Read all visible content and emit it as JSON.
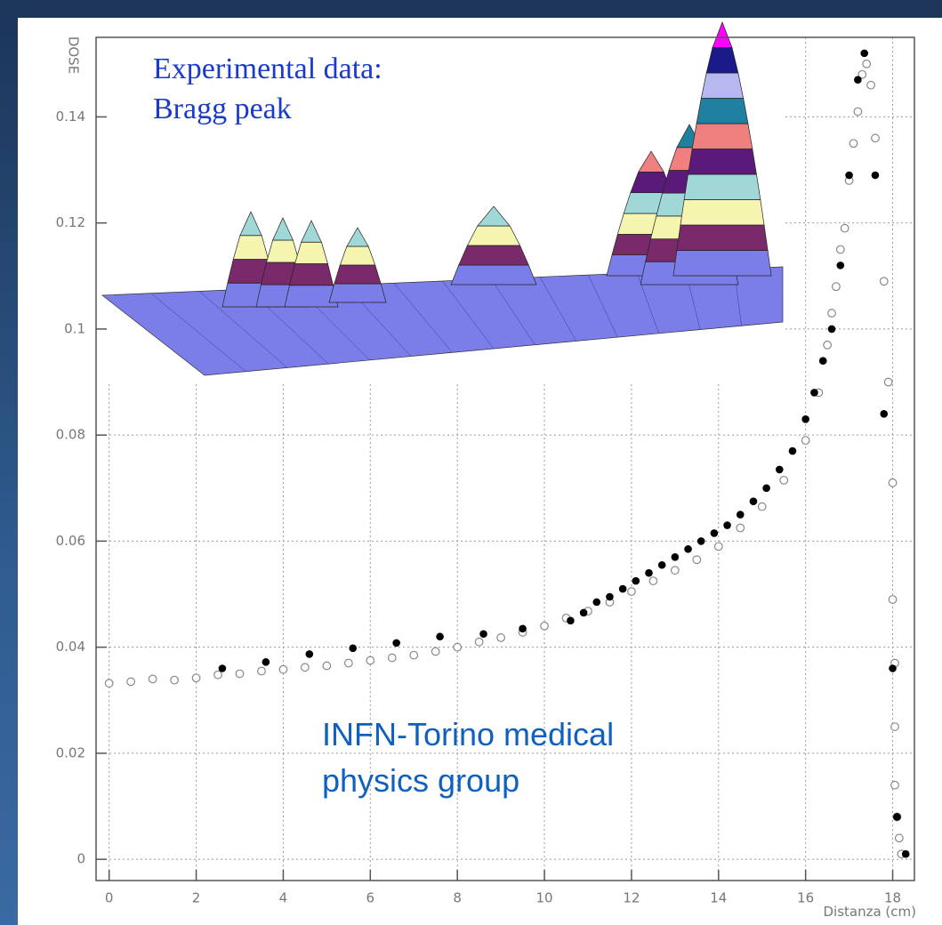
{
  "chart_data": {
    "type": "scatter",
    "y_label": "DOSE",
    "x_label": "Distanza (cm)",
    "annotations": [
      "Experimental data:",
      "Bragg peak",
      "INFN-Torino medical",
      "physics group"
    ],
    "xlim": [
      -0.3,
      18.5
    ],
    "ylim": [
      -0.004,
      0.155
    ],
    "xticks": [
      0,
      2,
      4,
      6,
      8,
      10,
      12,
      14,
      16,
      18
    ],
    "yticks": [
      0,
      0.02,
      0.04,
      0.06,
      0.08,
      0.1,
      0.12,
      0.14
    ],
    "grid": true,
    "series": [
      {
        "color": "#888888",
        "marker": "open",
        "x": [
          0,
          0.5,
          1,
          1.5,
          2,
          2.5,
          3,
          3.5,
          4,
          4.5,
          5,
          5.5,
          6,
          6.5,
          7,
          7.5,
          8,
          8.5,
          9,
          9.5,
          10,
          10.5,
          11,
          11.5,
          12,
          12.5,
          13,
          13.5,
          14,
          14.5,
          15,
          15.5,
          16,
          16.3,
          16.5,
          16.6,
          16.7,
          16.8,
          16.9,
          17,
          17.1,
          17.2,
          17.3,
          17.4,
          17.5,
          17.6,
          17.8,
          17.9,
          18,
          18,
          18.05,
          18.05,
          18.05,
          18.1,
          18.15,
          18.2
        ],
        "values": [
          0.0332,
          0.0335,
          0.034,
          0.0338,
          0.0342,
          0.0348,
          0.035,
          0.0355,
          0.0358,
          0.0362,
          0.0365,
          0.037,
          0.0375,
          0.038,
          0.0385,
          0.0392,
          0.04,
          0.041,
          0.0418,
          0.0428,
          0.044,
          0.0455,
          0.0468,
          0.0485,
          0.0505,
          0.0525,
          0.0545,
          0.0565,
          0.059,
          0.0625,
          0.0665,
          0.0715,
          0.079,
          0.088,
          0.097,
          0.103,
          0.108,
          0.115,
          0.119,
          0.128,
          0.135,
          0.141,
          0.148,
          0.15,
          0.146,
          0.136,
          0.109,
          0.09,
          0.071,
          0.049,
          0.037,
          0.025,
          0.014,
          0.008,
          0.004,
          0.001
        ]
      },
      {
        "color": "#000000",
        "marker": "filled",
        "x": [
          2.6,
          3.6,
          4.6,
          5.6,
          6.6,
          7.6,
          8.6,
          9.5,
          10.6,
          10.9,
          11.2,
          11.5,
          11.8,
          12.1,
          12.4,
          12.7,
          13,
          13.3,
          13.6,
          13.9,
          14.2,
          14.5,
          14.8,
          15.1,
          15.4,
          15.7,
          16,
          16.2,
          16.4,
          16.6,
          16.8,
          17,
          17.2,
          17.35,
          17.6,
          17.8,
          18,
          18.1,
          18.3
        ],
        "values": [
          0.036,
          0.0372,
          0.0387,
          0.0398,
          0.0408,
          0.042,
          0.0425,
          0.0435,
          0.045,
          0.0465,
          0.0485,
          0.0495,
          0.051,
          0.0525,
          0.054,
          0.0555,
          0.057,
          0.0585,
          0.06,
          0.0615,
          0.063,
          0.065,
          0.0675,
          0.07,
          0.0735,
          0.077,
          0.083,
          0.088,
          0.094,
          0.1,
          0.112,
          0.129,
          0.147,
          0.152,
          0.129,
          0.084,
          0.036,
          0.008,
          0.001
        ]
      }
    ]
  }
}
